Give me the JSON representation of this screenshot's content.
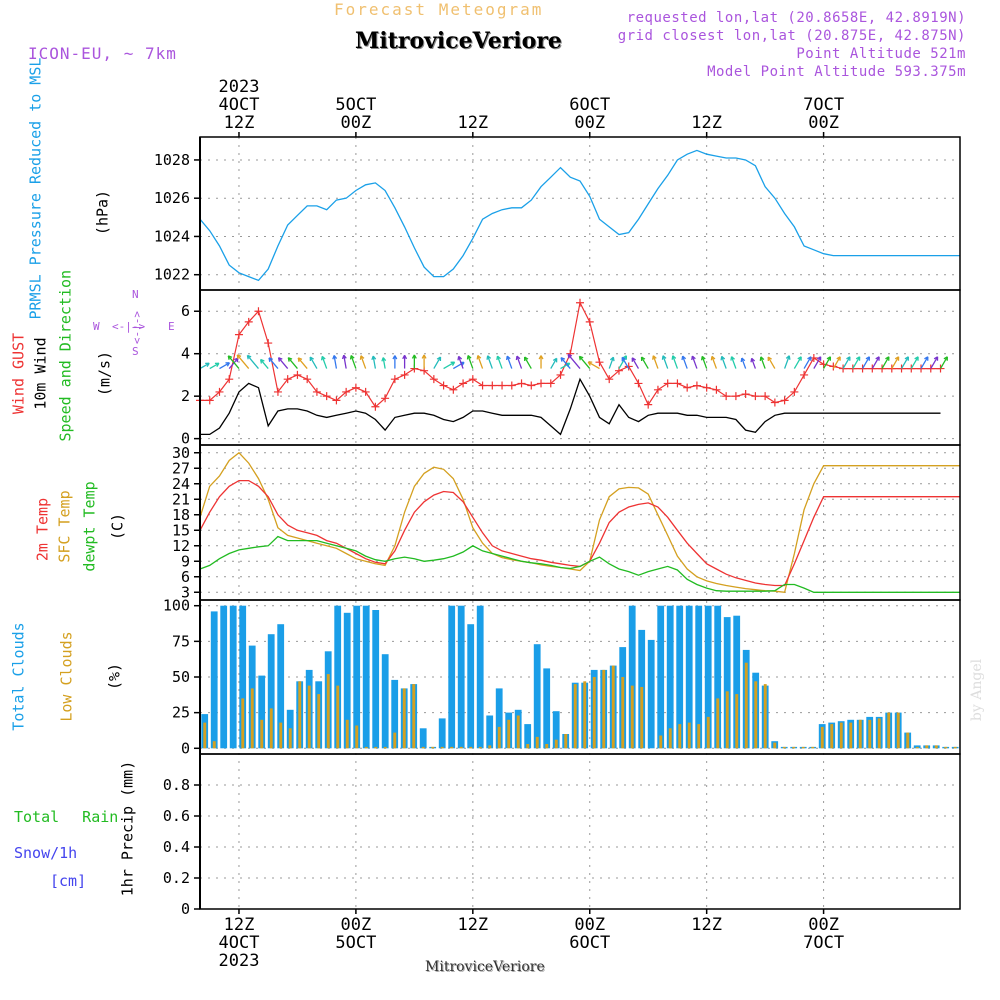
{
  "header": {
    "subtitle": "Forecast Meteogram",
    "location": "MitroviceVeriore",
    "model": "ICON-EU, ~ 7km",
    "requested": "requested lon,lat (20.8658E, 42.8919N)",
    "closest_overlay": "grid closest lon,lat (20.875E, 42.875N)",
    "point_altitude": "Point Altitude 521m",
    "model_altitude": "Model Point Altitude 593.375m",
    "footer_location": "MitroviceVeriore",
    "watermark": "by Angel"
  },
  "colors": {
    "pressure": "#1aa0e8",
    "gust": "#ee3333",
    "wind": "#000000",
    "direction": "#22bb22",
    "temp2m": "#ee3333",
    "sfc": "#d4a020",
    "dew": "#22bb22",
    "total_clouds": "#1a9ee8",
    "low_clouds": "#d4a020",
    "rain": "#22bb22",
    "snow": "#4444ee",
    "axis_purple": "#aa55dd",
    "subtitle": "#f0c070"
  },
  "chart_data": {
    "time_axis": {
      "hours_from_start": [
        0,
        156
      ],
      "top_ticks": [
        {
          "h": 8,
          "line1": "2023",
          "line2": "4OCT",
          "line3": "12Z"
        },
        {
          "h": 32,
          "line1": "",
          "line2": "5OCT",
          "line3": "00Z"
        },
        {
          "h": 56,
          "line1": "",
          "line2": "",
          "line3": "12Z"
        },
        {
          "h": 80,
          "line1": "",
          "line2": "6OCT",
          "line3": "00Z"
        },
        {
          "h": 104,
          "line1": "",
          "line2": "",
          "line3": "12Z"
        },
        {
          "h": 128,
          "line1": "",
          "line2": "7OCT",
          "line3": "00Z"
        }
      ],
      "bottom_ticks": [
        {
          "h": 8,
          "line1": "12Z",
          "line2": "4OCT",
          "line3": "2023"
        },
        {
          "h": 32,
          "line1": "00Z",
          "line2": "5OCT",
          "line3": ""
        },
        {
          "h": 56,
          "line1": "12Z",
          "line2": "",
          "line3": ""
        },
        {
          "h": 80,
          "line1": "00Z",
          "line2": "6OCT",
          "line3": ""
        },
        {
          "h": 104,
          "line1": "12Z",
          "line2": "",
          "line3": ""
        },
        {
          "h": 128,
          "line1": "00Z",
          "line2": "7OCT",
          "line3": ""
        }
      ]
    },
    "pressure": {
      "type": "line",
      "ylabel": "PRMSL Pressure Reduced to MSL",
      "unit": "(hPa)",
      "ylim": [
        1021.2,
        1029.2
      ],
      "ticks": [
        1022,
        1024,
        1026,
        1028
      ],
      "x": [
        0,
        2,
        4,
        6,
        8,
        10,
        12,
        14,
        16,
        18,
        20,
        22,
        24,
        26,
        28,
        30,
        32,
        34,
        36,
        38,
        40,
        42,
        44,
        46,
        48,
        50,
        52,
        54,
        56,
        58,
        60,
        62,
        64,
        66,
        68,
        70,
        72,
        74,
        76,
        78,
        80,
        82,
        84,
        86,
        88,
        90,
        92,
        94,
        96,
        98,
        100,
        102,
        104,
        106,
        108,
        110,
        112,
        114,
        116,
        118,
        120,
        122,
        124,
        126,
        128,
        130,
        132,
        134,
        136,
        138,
        140,
        142,
        144,
        146,
        148,
        150,
        152,
        154,
        156
      ],
      "values": [
        1024.9,
        1024.3,
        1023.5,
        1022.5,
        1022.1,
        1021.9,
        1021.7,
        1022.3,
        1023.5,
        1024.6,
        1025.1,
        1025.6,
        1025.6,
        1025.4,
        1025.9,
        1026.0,
        1026.4,
        1026.7,
        1026.8,
        1026.4,
        1025.5,
        1024.5,
        1023.4,
        1022.4,
        1021.9,
        1021.9,
        1022.3,
        1023.0,
        1023.9,
        1024.9,
        1025.2,
        1025.4,
        1025.5,
        1025.5,
        1025.9,
        1026.6,
        1027.1,
        1027.6,
        1027.1,
        1026.9,
        1026.1,
        1024.9,
        1024.5,
        1024.1,
        1024.2,
        1024.9,
        1025.7,
        1026.5,
        1027.2,
        1028.0,
        1028.3,
        1028.5,
        1028.3,
        1028.2,
        1028.1,
        1028.1,
        1028.0,
        1027.7,
        1026.6,
        1026.0,
        1025.2,
        1024.5,
        1023.5,
        1023.3,
        1023.1,
        1023.0,
        1023.0,
        1023.0,
        1023.0,
        1023.0,
        1023.0,
        1023.0,
        1023.0,
        1023.0,
        1023.0,
        1023.0,
        1023.0,
        1023.0,
        1023.0
      ]
    },
    "wind": {
      "type": "line",
      "ylabel_gust": "Wind GUST",
      "ylabel_wind": "10m Wind",
      "ylabel_dir": "Speed and Direction",
      "unit": "(m/s)",
      "compass": {
        "n": "N",
        "s": "S",
        "w": "W",
        "e": "E",
        "arrow": "<-|->"
      },
      "ylim": [
        -0.3,
        7
      ],
      "ticks": [
        0,
        2,
        4,
        6
      ],
      "x": [
        0,
        2,
        4,
        6,
        8,
        10,
        12,
        14,
        16,
        18,
        20,
        22,
        24,
        26,
        28,
        30,
        32,
        34,
        36,
        38,
        40,
        42,
        44,
        46,
        48,
        50,
        52,
        54,
        56,
        58,
        60,
        62,
        64,
        66,
        68,
        70,
        72,
        74,
        76,
        78,
        80,
        82,
        84,
        86,
        88,
        90,
        92,
        94,
        96,
        98,
        100,
        102,
        104,
        106,
        108,
        110,
        112,
        114,
        116,
        118,
        120,
        122,
        124,
        126,
        128,
        130,
        132,
        134,
        136,
        138,
        140,
        142,
        144,
        146,
        148,
        150,
        152
      ],
      "gust": [
        1.8,
        1.8,
        2.2,
        2.8,
        4.9,
        5.5,
        6.0,
        4.5,
        2.2,
        2.8,
        3.0,
        2.8,
        2.2,
        2.0,
        1.8,
        2.2,
        2.4,
        2.2,
        1.5,
        1.9,
        2.8,
        3.0,
        3.3,
        3.2,
        2.8,
        2.5,
        2.3,
        2.6,
        2.8,
        2.5,
        2.5,
        2.5,
        2.5,
        2.6,
        2.5,
        2.6,
        2.6,
        3.0,
        4.0,
        6.4,
        5.5,
        3.6,
        2.8,
        3.2,
        3.4,
        2.6,
        1.6,
        2.3,
        2.6,
        2.6,
        2.4,
        2.5,
        2.4,
        2.3,
        2.0,
        2.0,
        2.1,
        2.0,
        2.0,
        1.7,
        1.8,
        2.2,
        3.0,
        3.8,
        3.5,
        3.4,
        3.3,
        3.3,
        3.3,
        3.3,
        3.3,
        3.3,
        3.3,
        3.3,
        3.3,
        3.3,
        3.3
      ],
      "speed": [
        0.2,
        0.2,
        0.5,
        1.2,
        2.2,
        2.6,
        2.4,
        0.6,
        1.3,
        1.4,
        1.4,
        1.3,
        1.1,
        1.0,
        1.1,
        1.2,
        1.3,
        1.2,
        0.9,
        0.4,
        1.0,
        1.1,
        1.2,
        1.2,
        1.1,
        0.9,
        0.8,
        1.0,
        1.3,
        1.3,
        1.2,
        1.1,
        1.1,
        1.1,
        1.1,
        1.0,
        0.6,
        0.2,
        1.4,
        2.8,
        2.0,
        1.0,
        0.7,
        1.6,
        1.0,
        0.8,
        1.1,
        1.2,
        1.2,
        1.2,
        1.1,
        1.1,
        1.0,
        1.0,
        1.0,
        0.9,
        0.4,
        0.3,
        0.8,
        1.1,
        1.2,
        1.2,
        1.2,
        1.2,
        1.2,
        1.2,
        1.2,
        1.2,
        1.2,
        1.2,
        1.2,
        1.2,
        1.2,
        1.2,
        1.2,
        1.2,
        1.2
      ],
      "arrow_angle": [
        60,
        60,
        60,
        40,
        320,
        320,
        320,
        320,
        320,
        320,
        320,
        320,
        330,
        340,
        350,
        350,
        340,
        340,
        350,
        350,
        0,
        0,
        0,
        0,
        30,
        60,
        60,
        340,
        340,
        340,
        340,
        340,
        340,
        340,
        330,
        0,
        30,
        60,
        320,
        320,
        320,
        300,
        20,
        30,
        330,
        330,
        330,
        340,
        340,
        340,
        340,
        340,
        340,
        340,
        340,
        340,
        340,
        340,
        340,
        330,
        20,
        30,
        30,
        30,
        30,
        30,
        30,
        30,
        30,
        30,
        30,
        30,
        30,
        30,
        30,
        30,
        30
      ]
    },
    "temperature": {
      "type": "line",
      "ylabel_2m": "2m Temp",
      "ylabel_sfc": "SFC Temp",
      "ylabel_dew": "dewpt Temp",
      "unit": "(C)",
      "ylim": [
        1.5,
        31.5
      ],
      "ticks": [
        3,
        6,
        9,
        12,
        15,
        18,
        21,
        24,
        27,
        30
      ],
      "x": [
        0,
        2,
        4,
        6,
        8,
        10,
        12,
        14,
        16,
        18,
        20,
        22,
        24,
        26,
        28,
        30,
        32,
        34,
        36,
        38,
        40,
        42,
        44,
        46,
        48,
        50,
        52,
        54,
        56,
        58,
        60,
        62,
        64,
        66,
        68,
        70,
        72,
        74,
        76,
        78,
        80,
        82,
        84,
        86,
        88,
        90,
        92,
        94,
        96,
        98,
        100,
        102,
        104,
        106,
        108,
        110,
        112,
        114,
        116,
        118,
        120,
        122,
        124,
        126,
        128,
        130,
        132,
        134,
        136,
        138,
        140,
        142,
        144,
        146,
        148,
        150,
        152,
        154,
        156
      ],
      "t2m": [
        15.0,
        18.5,
        21.5,
        23.5,
        24.6,
        24.6,
        23.5,
        21.5,
        18.0,
        16.0,
        15.0,
        14.5,
        14.0,
        13.0,
        12.5,
        11.5,
        10.5,
        9.5,
        8.8,
        8.5,
        11.0,
        15.0,
        18.5,
        20.5,
        21.8,
        22.5,
        22.3,
        20.5,
        17.5,
        14.5,
        12.0,
        11.0,
        10.5,
        10.0,
        9.5,
        9.2,
        8.8,
        8.5,
        8.2,
        8.0,
        9.0,
        12.5,
        16.5,
        18.5,
        19.5,
        20.0,
        20.3,
        19.5,
        17.5,
        15.0,
        12.5,
        10.5,
        8.5,
        7.5,
        6.5,
        5.8,
        5.3,
        4.8,
        4.5,
        4.3,
        4.3,
        8.5,
        13.0,
        17.5,
        21.5,
        21.5,
        21.5,
        21.5,
        21.5,
        21.5,
        21.5,
        21.5,
        21.5,
        21.5,
        21.5,
        21.5,
        21.5,
        21.5,
        21.5
      ],
      "sfc": [
        17.5,
        23.5,
        25.5,
        28.5,
        30.0,
        28.0,
        25.0,
        21.0,
        15.5,
        14.0,
        13.5,
        13.0,
        12.5,
        12.0,
        11.5,
        10.5,
        9.5,
        9.0,
        8.5,
        8.2,
        12.0,
        18.5,
        23.5,
        26.0,
        27.2,
        26.8,
        25.0,
        21.0,
        15.5,
        12.5,
        10.5,
        9.7,
        9.3,
        9.0,
        8.7,
        8.3,
        8.0,
        7.8,
        7.5,
        7.2,
        9.0,
        17.0,
        21.5,
        23.0,
        23.3,
        23.2,
        22.0,
        18.0,
        14.0,
        10.0,
        7.5,
        6.0,
        5.2,
        4.7,
        4.3,
        4.0,
        3.7,
        3.5,
        3.3,
        3.2,
        3.0,
        10.5,
        19.0,
        24.0,
        27.5,
        27.5,
        27.5,
        27.5,
        27.5,
        27.5,
        27.5,
        27.5,
        27.5,
        27.5,
        27.5,
        27.5,
        27.5,
        27.5,
        27.5
      ],
      "dew": [
        7.5,
        8.2,
        9.5,
        10.5,
        11.2,
        11.5,
        11.8,
        12.0,
        13.8,
        13.0,
        13.0,
        13.0,
        13.0,
        12.5,
        12.0,
        11.5,
        11.0,
        10.0,
        9.3,
        9.0,
        9.5,
        9.8,
        9.5,
        9.0,
        9.2,
        9.5,
        10.0,
        10.8,
        12.0,
        11.0,
        10.5,
        10.0,
        9.5,
        9.0,
        8.7,
        8.5,
        8.2,
        7.8,
        7.6,
        8.0,
        9.0,
        9.8,
        8.5,
        7.5,
        7.0,
        6.3,
        7.0,
        7.5,
        8.0,
        7.3,
        5.5,
        4.5,
        3.8,
        3.3,
        3.2,
        3.2,
        3.2,
        3.2,
        3.2,
        3.3,
        4.5,
        4.5,
        3.8,
        3.0,
        3.0,
        3.0,
        3.0,
        3.0,
        3.0,
        3.0,
        3.0,
        3.0,
        3.0,
        3.0,
        3.0,
        3.0,
        3.0,
        3.0,
        3.0
      ]
    },
    "clouds": {
      "type": "bar",
      "ylabel_total": "Total Clouds",
      "ylabel_low": "Low Clouds",
      "unit": "(%)",
      "ylim": [
        -4,
        104
      ],
      "ticks": [
        0,
        25,
        50,
        75,
        100
      ],
      "x": [
        0,
        1,
        2,
        3,
        4,
        5,
        6,
        7,
        8,
        9,
        10,
        11,
        12,
        13,
        14,
        15,
        16,
        17,
        18,
        19,
        20,
        21,
        22,
        23,
        24,
        25,
        26,
        27,
        28,
        29,
        30,
        31,
        32,
        33,
        34,
        35,
        36,
        37,
        38,
        39,
        40,
        41,
        42,
        43,
        44,
        45,
        46,
        47,
        48,
        49,
        50,
        51,
        52,
        53,
        54,
        55,
        56,
        57,
        58,
        59,
        60,
        61,
        62,
        63,
        64,
        65,
        66,
        67,
        68,
        69,
        70,
        71,
        72,
        73,
        74,
        75,
        76,
        77,
        78,
        79
      ],
      "total": [
        24,
        96,
        100,
        100,
        100,
        72,
        51,
        80,
        87,
        27,
        47,
        55,
        47,
        68,
        100,
        95,
        100,
        100,
        97,
        66,
        48,
        42,
        45,
        14,
        1,
        21,
        100,
        100,
        87,
        100,
        23,
        42,
        25,
        27,
        17,
        73,
        56,
        26,
        10,
        46,
        46,
        55,
        55,
        58,
        71,
        100,
        83,
        76,
        100,
        100,
        100,
        100,
        100,
        100,
        100,
        92,
        93,
        69,
        53,
        44,
        5,
        1,
        1,
        1,
        1,
        17,
        18,
        19,
        20,
        20,
        22,
        22,
        25,
        25,
        11,
        2,
        2,
        2,
        1,
        1
      ],
      "low": [
        18,
        5,
        0,
        0,
        35,
        42,
        20,
        28,
        18,
        14,
        47,
        44,
        38,
        52,
        44,
        20,
        16,
        1,
        1,
        1,
        11,
        42,
        45,
        1,
        1,
        1,
        1,
        1,
        1,
        1,
        2,
        15,
        20,
        23,
        3,
        8,
        3,
        6,
        10,
        45,
        47,
        50,
        55,
        58,
        50,
        44,
        43,
        0,
        9,
        14,
        17,
        18,
        17,
        22,
        35,
        40,
        38,
        60,
        47,
        45,
        4,
        1,
        1,
        1,
        1,
        15,
        17,
        18,
        18,
        20,
        20,
        21,
        25,
        25,
        11,
        1,
        2,
        2,
        1,
        1
      ]
    },
    "precip": {
      "type": "bar",
      "ylabel": "1hr Precip (mm)",
      "label_rain": "Total Rain",
      "label_snow": "Snow/1h",
      "label_cm": "[cm]",
      "ylim": [
        0,
        1
      ],
      "ticks": [
        "0",
        "0.2",
        "0.4",
        "0.6",
        "0.8"
      ],
      "values": []
    }
  }
}
